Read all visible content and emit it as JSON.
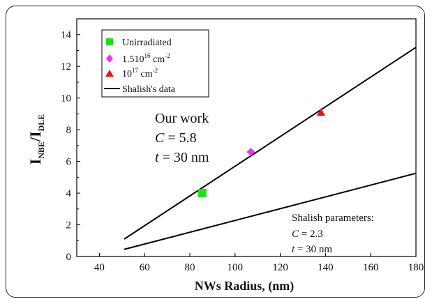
{
  "chart_data": {
    "type": "scatter",
    "xlabel": "NWs Radius, (nm)",
    "ylabel": {
      "main": "I",
      "sub1": "NBE",
      "sep": "/I",
      "sub2": "DLE"
    },
    "xlim": [
      30,
      180
    ],
    "ylim": [
      0,
      15
    ],
    "x_ticks": [
      40,
      60,
      80,
      100,
      120,
      140,
      160,
      180
    ],
    "y_ticks": [
      0,
      2,
      4,
      6,
      8,
      10,
      12,
      14
    ],
    "legend_position": "top-left",
    "grid": false,
    "series": [
      {
        "name": "Unirradiated",
        "kind": "point",
        "marker": "square",
        "color": "#22dd22",
        "x": [
          85.5
        ],
        "y": [
          4.0
        ]
      },
      {
        "name_main": "1.510",
        "name_sup": "16",
        "name_tail": " cm",
        "name_sup2": "-2",
        "kind": "point",
        "marker": "diamond",
        "color": "#ee33ee",
        "x": [
          107
        ],
        "y": [
          6.6
        ]
      },
      {
        "name_main": "10",
        "name_sup": "17",
        "name_tail": " cm",
        "name_sup2": "-2",
        "kind": "point",
        "marker": "triangle",
        "color": "#ee1111",
        "x": [
          138
        ],
        "y": [
          9.1
        ]
      },
      {
        "name": "Shalish's data",
        "kind": "line",
        "color": "#000000",
        "x": [
          51,
          180
        ],
        "y": [
          1.1,
          13.2
        ]
      },
      {
        "kind": "line",
        "color": "#000000",
        "x": [
          51,
          180
        ],
        "y": [
          0.45,
          5.25
        ]
      }
    ],
    "annotations": {
      "our_work": {
        "title": "Our work",
        "c_label": "C",
        "c_value": " = 5.8",
        "t_label": "t",
        "t_value": "  = 30 nm"
      },
      "shalish": {
        "title": "Shalish parameters:",
        "c_label": "C",
        "c_value": " = 2.3",
        "t_label": "t",
        "t_value": " = 30 nm"
      }
    }
  }
}
